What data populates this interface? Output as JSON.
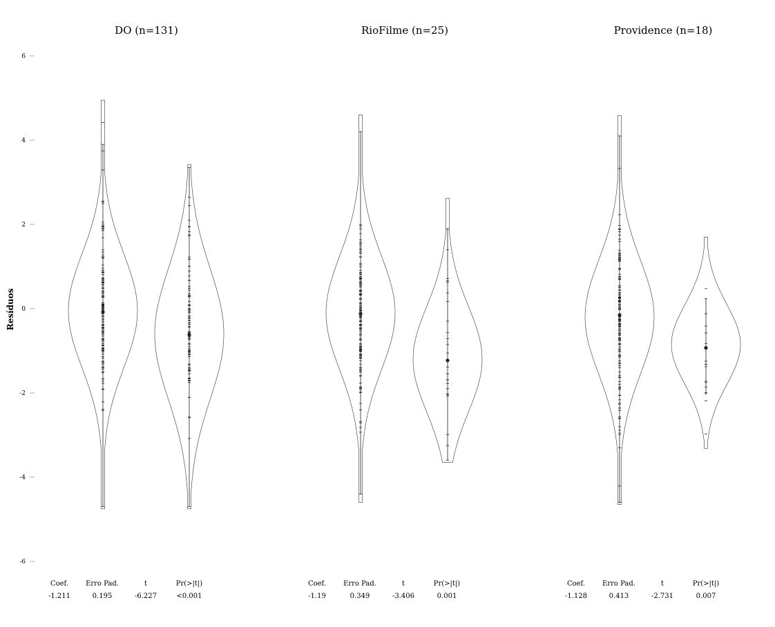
{
  "chart_data": {
    "type": "violin",
    "ylabel": "Resíduos",
    "ylim": [
      -6,
      6
    ],
    "yticks": [
      {
        "value": 6,
        "label": "6"
      },
      {
        "value": 4,
        "label": "4"
      },
      {
        "value": 2,
        "label": "2"
      },
      {
        "value": 0,
        "label": "0"
      },
      {
        "value": -2,
        "label": "-2"
      },
      {
        "value": -4,
        "label": "-4"
      },
      {
        "value": -6,
        "label": "-6"
      }
    ],
    "stat_headers": [
      "Coef.",
      "Erro Pad.",
      "t",
      "Pr(>|t|)"
    ],
    "panels": [
      {
        "title": "DO (n=131)",
        "coef": "-1.211",
        "se": "0.195",
        "t": "-6.227",
        "p": "<0.001",
        "violins": [
          {
            "min": -4.75,
            "max": 4.95,
            "mode": -0.05,
            "halfwidth": 50,
            "sd": 1.35,
            "mean": -0.08,
            "ci": [
              -4.7,
              3.9
            ],
            "n_rug": 150
          },
          {
            "min": -4.75,
            "max": 3.42,
            "mode": -0.6,
            "halfwidth": 50,
            "sd": 1.55,
            "mean": -0.62,
            "ci": [
              -4.7,
              3.35
            ],
            "n_rug": 90
          }
        ]
      },
      {
        "title": "RioFilme (n=25)",
        "coef": "-1.19",
        "se": "0.349",
        "t": "-3.406",
        "p": "0.001",
        "violins": [
          {
            "min": -4.6,
            "max": 4.6,
            "mode": -0.1,
            "halfwidth": 50,
            "sd": 1.35,
            "mean": -0.12,
            "ci": [
              -4.4,
              4.2
            ],
            "n_rug": 150
          },
          {
            "min": -3.65,
            "max": 2.62,
            "mode": -1.2,
            "halfwidth": 50,
            "sd": 1.25,
            "mean": -1.23,
            "ci": [
              -3.6,
              1.9
            ],
            "n_rug": 22
          }
        ]
      },
      {
        "title": "Providence (n=18)",
        "coef": "-1.128",
        "se": "0.413",
        "t": "-2.731",
        "p": "0.007",
        "violins": [
          {
            "min": -4.65,
            "max": 4.58,
            "mode": -0.2,
            "halfwidth": 50,
            "sd": 1.35,
            "mean": -0.15,
            "ci": [
              -4.6,
              4.1
            ],
            "n_rug": 150
          },
          {
            "min": -3.32,
            "max": 1.7,
            "mode": -0.85,
            "halfwidth": 50,
            "sd": 0.95,
            "mean": -0.93,
            "ci": [
              -2.02,
              0.24
            ],
            "n_rug": 16
          }
        ]
      }
    ]
  }
}
